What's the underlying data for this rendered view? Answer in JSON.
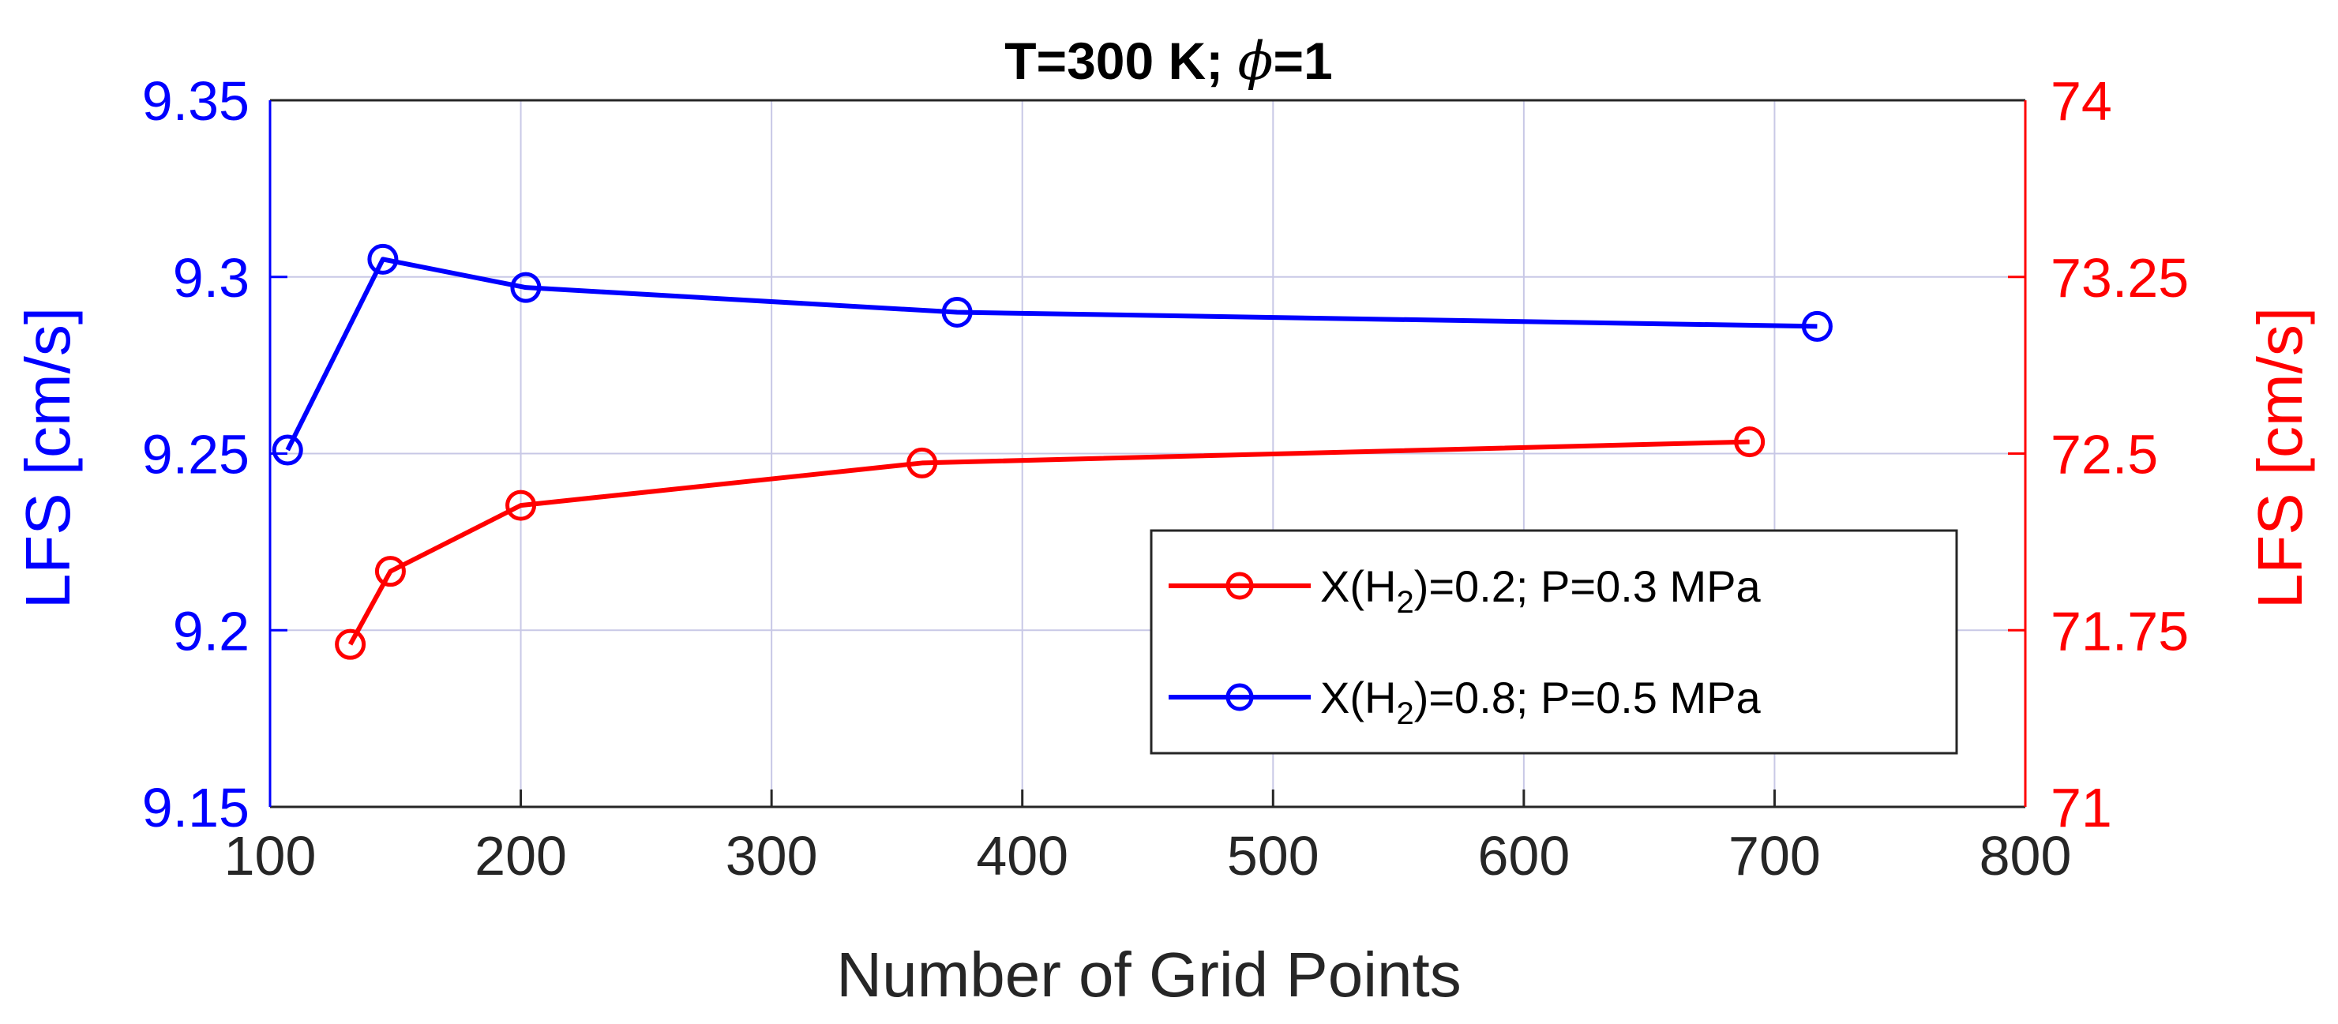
{
  "chart_data": {
    "type": "line",
    "title": "T=300 K; ",
    "title_symbol": "ϕ",
    "title_suffix": "=1",
    "xlabel": "Number of Grid Points",
    "ylabel_left": "LFS [cm/s]",
    "ylabel_right": "LFS [cm/s]",
    "xlim": [
      100,
      800
    ],
    "ylim_left": [
      9.15,
      9.35
    ],
    "ylim_right": [
      71,
      74
    ],
    "xticks": [
      100,
      200,
      300,
      400,
      500,
      600,
      700,
      800
    ],
    "yticks_left": [
      "9.15",
      "9.2",
      "9.25",
      "9.3",
      "9.35"
    ],
    "yticks_right": [
      "71",
      "71.75",
      "72.5",
      "73.25",
      "74"
    ],
    "grid": true,
    "legend_position": "lower-right",
    "series": [
      {
        "name": "X(H2)=0.2; P=0.3 MPa",
        "legend_prefix": "X(H",
        "legend_sub": "2",
        "legend_suffix": ")=0.2; P=0.3 MPa",
        "axis": "right",
        "color": "#ff0000",
        "marker": "circle",
        "x": [
          132,
          148,
          200,
          360,
          690
        ],
        "y": [
          71.69,
          72.0,
          72.28,
          72.46,
          72.55
        ]
      },
      {
        "name": "X(H2)=0.8; P=0.5 MPa",
        "legend_prefix": "X(H",
        "legend_sub": "2",
        "legend_suffix": ")=0.8; P=0.5 MPa",
        "axis": "left",
        "color": "#0000ff",
        "marker": "circle",
        "x": [
          107,
          145,
          202,
          374,
          717
        ],
        "y": [
          9.251,
          9.305,
          9.297,
          9.29,
          9.286
        ]
      }
    ],
    "colors": {
      "left_axis": "#0000ff",
      "right_axis": "#ff0000",
      "x_axis": "#262626",
      "grid": "#c8c8e6"
    }
  }
}
